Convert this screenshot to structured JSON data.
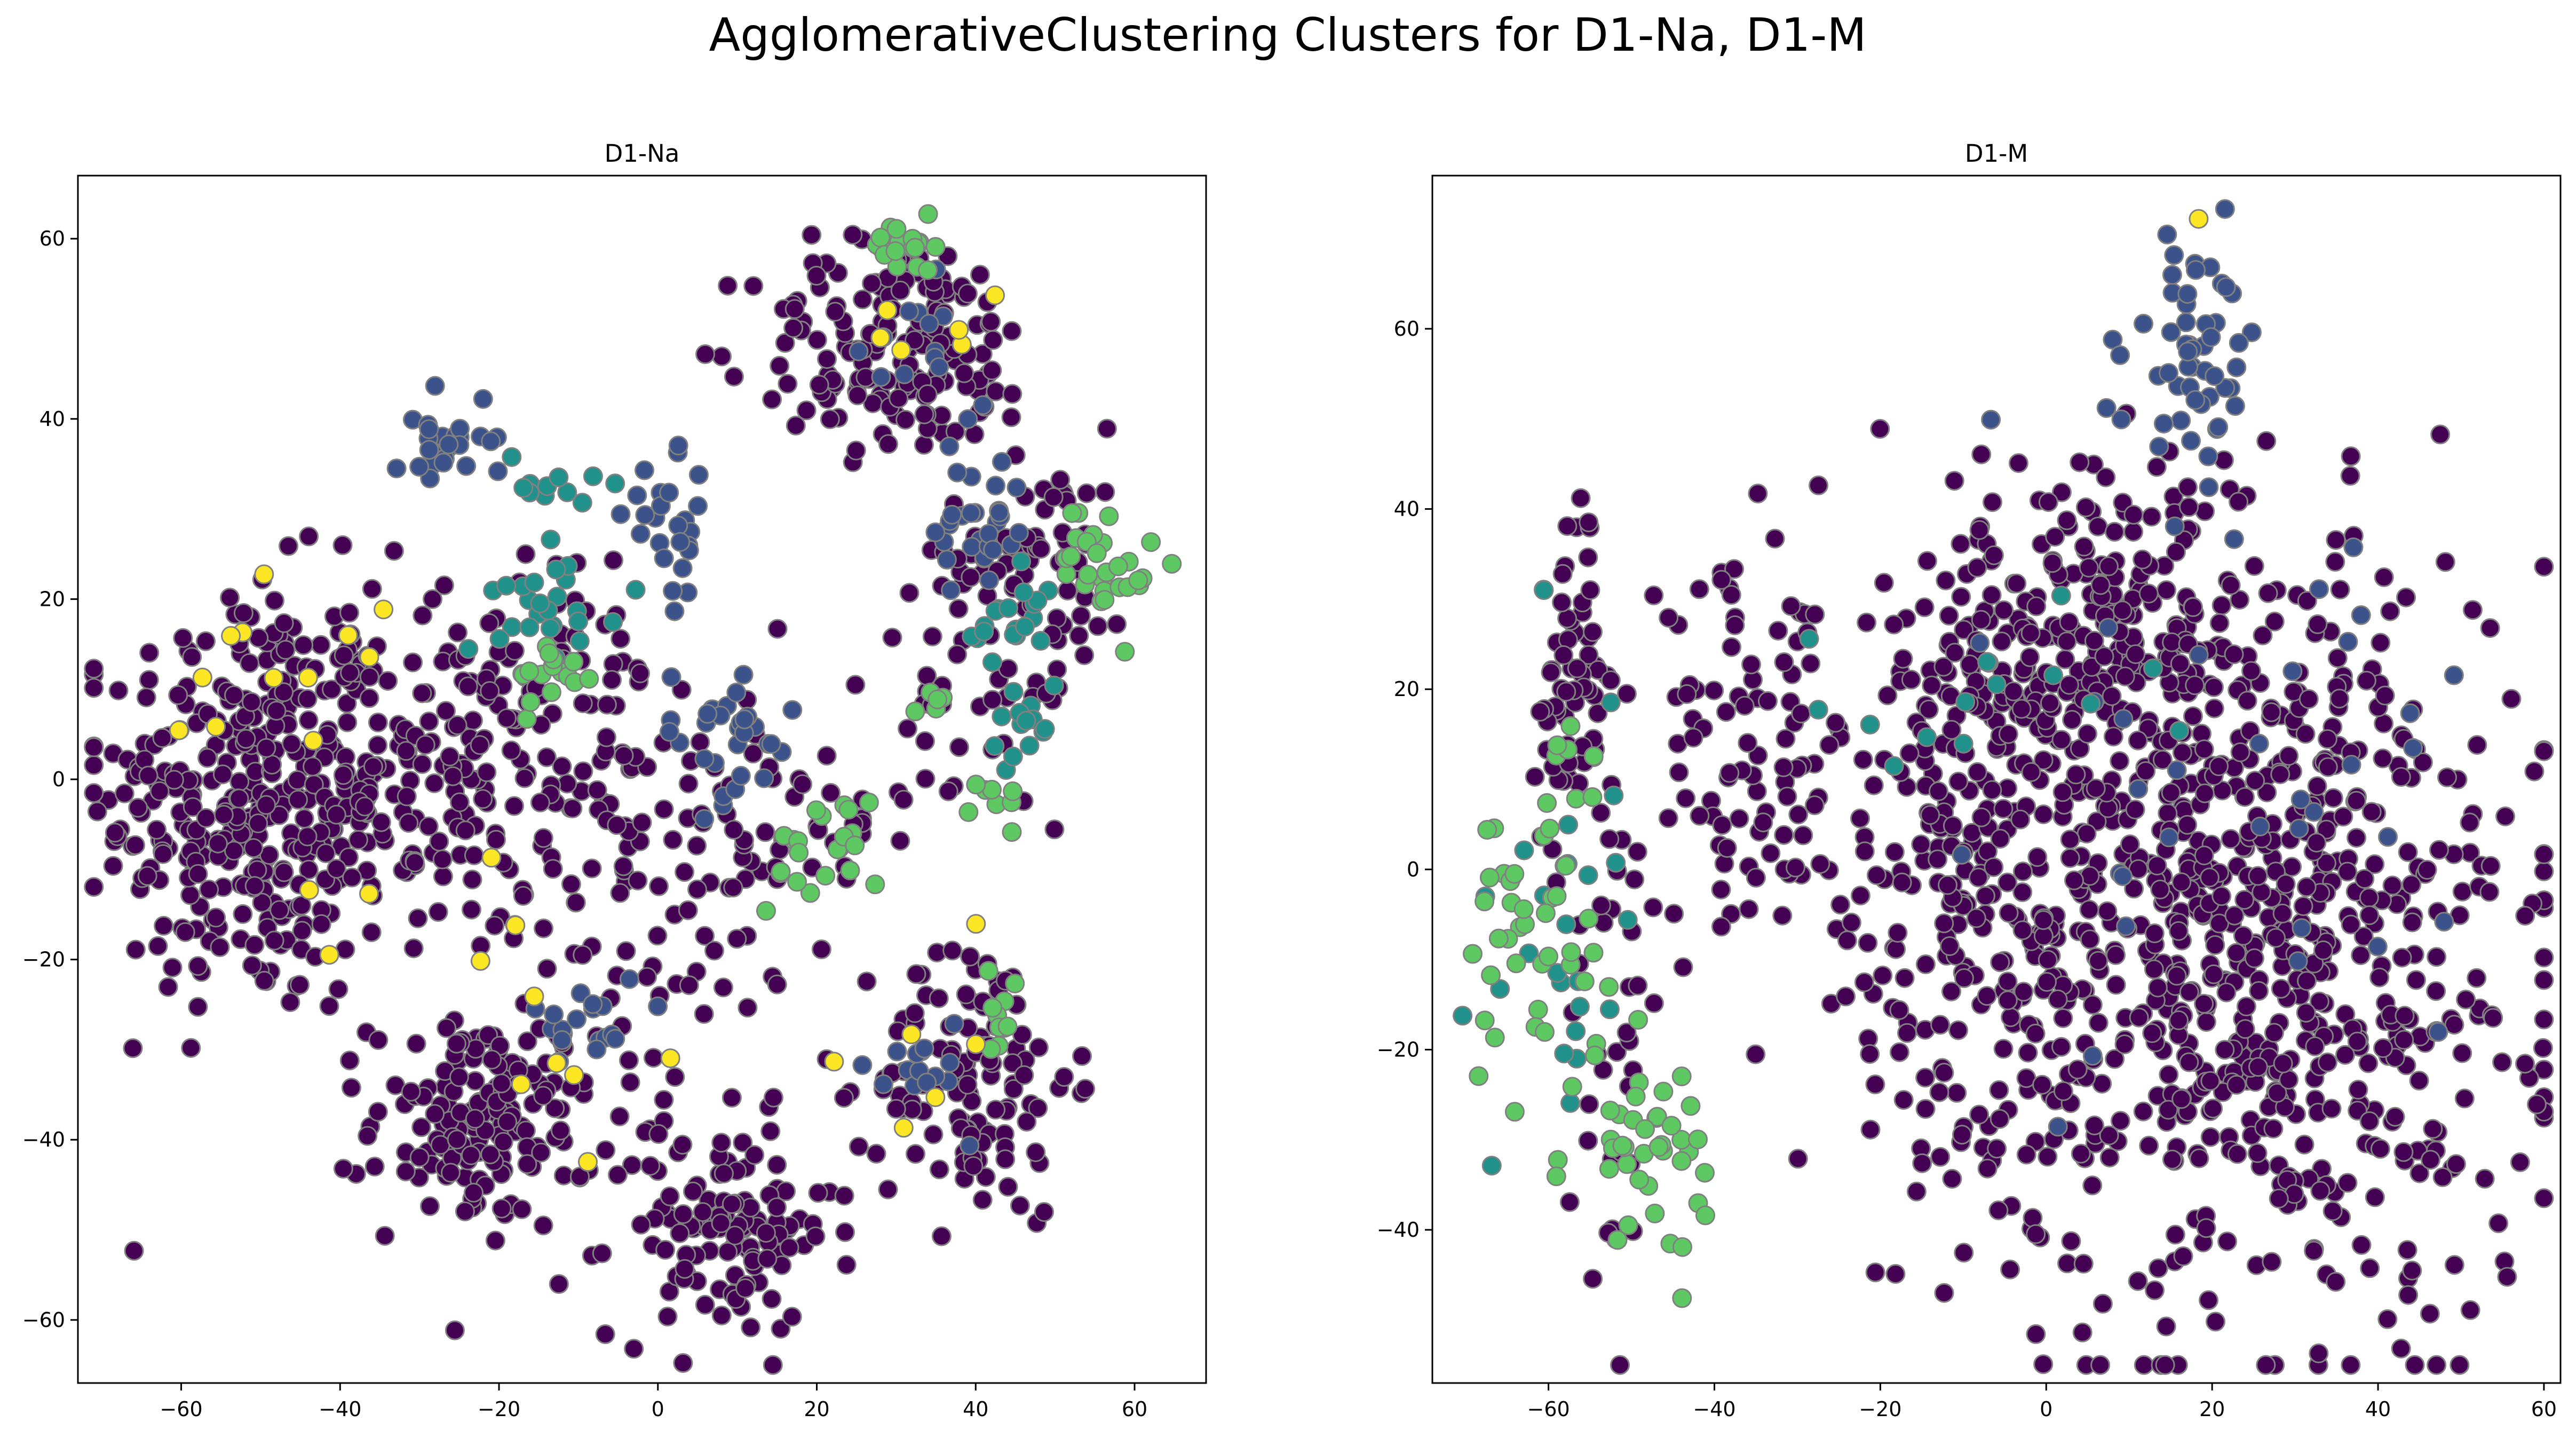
{
  "figure_title": "AgglomerativeClustering Clusters for D1-Na, D1-M",
  "chart_data": [
    {
      "type": "scatter",
      "title": "D1-Na",
      "xlabel": "",
      "ylabel": "",
      "xlim": [
        -73,
        69
      ],
      "ylim": [
        -67,
        67
      ],
      "xticks": [
        -60,
        -40,
        -20,
        0,
        20,
        40,
        60
      ],
      "yticks": [
        -60,
        -40,
        -20,
        0,
        20,
        40,
        60
      ],
      "grid": false,
      "legend": "none",
      "colors": {
        "0": "#440154",
        "1": "#3b528b",
        "2": "#21918c",
        "3": "#5ec962",
        "4": "#fde725"
      },
      "point_edge_color": "#808080",
      "clusters": [
        {
          "name": "0",
          "center": [
            -52,
            -2
          ],
          "spread": [
            9,
            12
          ],
          "count": 320
        },
        {
          "name": "0",
          "center": [
            -32,
            0
          ],
          "spread": [
            10,
            10
          ],
          "count": 160
        },
        {
          "name": "0",
          "center": [
            -12,
            2
          ],
          "spread": [
            9,
            11
          ],
          "count": 110
        },
        {
          "name": "0",
          "center": [
            -22,
            -38
          ],
          "spread": [
            7,
            6
          ],
          "count": 160
        },
        {
          "name": "0",
          "center": [
            8,
            -50
          ],
          "spread": [
            7,
            6
          ],
          "count": 120
        },
        {
          "name": "0",
          "center": [
            40,
            -33
          ],
          "spread": [
            6,
            8
          ],
          "count": 120
        },
        {
          "name": "0",
          "center": [
            30,
            48
          ],
          "spread": [
            9,
            6
          ],
          "count": 160
        },
        {
          "name": "0",
          "center": [
            48,
            25
          ],
          "spread": [
            6,
            7
          ],
          "count": 70
        },
        {
          "name": "0",
          "center": [
            14,
            -5
          ],
          "spread": [
            10,
            6
          ],
          "count": 70
        },
        {
          "name": "0",
          "center": [
            3,
            -22
          ],
          "spread": [
            8,
            5
          ],
          "count": 25
        },
        {
          "name": "0",
          "center": [
            38,
            8
          ],
          "spread": [
            6,
            6
          ],
          "count": 25
        },
        {
          "name": "1",
          "center": [
            -27,
            38
          ],
          "spread": [
            3,
            3
          ],
          "count": 25
        },
        {
          "name": "1",
          "center": [
            2,
            27
          ],
          "spread": [
            3,
            4
          ],
          "count": 25
        },
        {
          "name": "1",
          "center": [
            8,
            5
          ],
          "spread": [
            5,
            4
          ],
          "count": 30
        },
        {
          "name": "1",
          "center": [
            41,
            28
          ],
          "spread": [
            3,
            4
          ],
          "count": 30
        },
        {
          "name": "1",
          "center": [
            -10,
            -26
          ],
          "spread": [
            4,
            3
          ],
          "count": 18
        },
        {
          "name": "1",
          "center": [
            33,
            -32
          ],
          "spread": [
            3,
            3
          ],
          "count": 15
        },
        {
          "name": "1",
          "center": [
            32,
            46
          ],
          "spread": [
            5,
            4
          ],
          "count": 15
        },
        {
          "name": "2",
          "center": [
            -12,
            20
          ],
          "spread": [
            4,
            3
          ],
          "count": 25
        },
        {
          "name": "2",
          "center": [
            -14,
            33
          ],
          "spread": [
            3,
            2
          ],
          "count": 12
        },
        {
          "name": "2",
          "center": [
            44,
            17
          ],
          "spread": [
            3,
            3
          ],
          "count": 20
        },
        {
          "name": "2",
          "center": [
            47,
            5
          ],
          "spread": [
            3,
            3
          ],
          "count": 14
        },
        {
          "name": "3",
          "center": [
            31,
            59
          ],
          "spread": [
            2,
            1.5
          ],
          "count": 20
        },
        {
          "name": "3",
          "center": [
            -13,
            12
          ],
          "spread": [
            3,
            2
          ],
          "count": 15
        },
        {
          "name": "3",
          "center": [
            20,
            -8
          ],
          "spread": [
            4,
            3
          ],
          "count": 20
        },
        {
          "name": "3",
          "center": [
            57,
            24
          ],
          "spread": [
            3,
            4
          ],
          "count": 28
        },
        {
          "name": "3",
          "center": [
            43,
            -26
          ],
          "spread": [
            1.5,
            2
          ],
          "count": 10
        },
        {
          "name": "3",
          "center": [
            42,
            -3
          ],
          "spread": [
            2,
            1.5
          ],
          "count": 8
        },
        {
          "name": "3",
          "center": [
            34,
            9
          ],
          "spread": [
            1.5,
            1
          ],
          "count": 5
        },
        {
          "name": "4",
          "center": [
            -48,
            14
          ],
          "spread": [
            7,
            5
          ],
          "count": 12
        },
        {
          "name": "4",
          "center": [
            -35,
            -12
          ],
          "spread": [
            8,
            6
          ],
          "count": 6
        },
        {
          "name": "4",
          "center": [
            33,
            50
          ],
          "spread": [
            8,
            4
          ],
          "count": 6
        },
        {
          "name": "4",
          "center": [
            35,
            -28
          ],
          "spread": [
            8,
            5
          ],
          "count": 6
        },
        {
          "name": "4",
          "center": [
            -8,
            -35
          ],
          "spread": [
            10,
            6
          ],
          "count": 6
        }
      ]
    },
    {
      "type": "scatter",
      "title": "D1-M",
      "xlabel": "",
      "ylabel": "",
      "xlim": [
        -74,
        62
      ],
      "ylim": [
        -57,
        77
      ],
      "xticks": [
        -60,
        -40,
        -20,
        0,
        20,
        40,
        60
      ],
      "yticks": [
        -40,
        -20,
        0,
        20,
        40,
        60
      ],
      "grid": false,
      "legend": "none",
      "colors": {
        "0": "#440154",
        "1": "#3b528b",
        "2": "#21918c",
        "3": "#5ec962",
        "4": "#fde725"
      },
      "point_edge_color": "#808080",
      "clusters": [
        {
          "name": "0",
          "center": [
            25,
            -10
          ],
          "spread": [
            17,
            20
          ],
          "count": 720
        },
        {
          "name": "0",
          "center": [
            5,
            25
          ],
          "spread": [
            16,
            10
          ],
          "count": 300
        },
        {
          "name": "0",
          "center": [
            -10,
            -5
          ],
          "spread": [
            10,
            15
          ],
          "count": 200
        },
        {
          "name": "0",
          "center": [
            -37,
            12
          ],
          "spread": [
            6,
            10
          ],
          "count": 80
        },
        {
          "name": "0",
          "center": [
            -57,
            20
          ],
          "spread": [
            2,
            10
          ],
          "count": 60
        },
        {
          "name": "0",
          "center": [
            -52,
            -15
          ],
          "spread": [
            3,
            15
          ],
          "count": 40
        },
        {
          "name": "1",
          "center": [
            18,
            58
          ],
          "spread": [
            4,
            6
          ],
          "count": 50
        },
        {
          "name": "1",
          "center": [
            20,
            10
          ],
          "spread": [
            20,
            20
          ],
          "count": 40
        },
        {
          "name": "2",
          "center": [
            -10,
            18
          ],
          "spread": [
            10,
            5
          ],
          "count": 15
        },
        {
          "name": "2",
          "center": [
            -57,
            -5
          ],
          "spread": [
            4,
            12
          ],
          "count": 25
        },
        {
          "name": "3",
          "center": [
            -62,
            -10
          ],
          "spread": [
            4,
            8
          ],
          "count": 40
        },
        {
          "name": "3",
          "center": [
            -48,
            -30
          ],
          "spread": [
            4,
            5
          ],
          "count": 40
        },
        {
          "name": "3",
          "center": [
            -58,
            12
          ],
          "spread": [
            2,
            5
          ],
          "count": 10
        },
        {
          "name": "4",
          "center": [
            18,
            72
          ],
          "spread": [
            0.3,
            0.3
          ],
          "count": 1
        }
      ]
    }
  ]
}
